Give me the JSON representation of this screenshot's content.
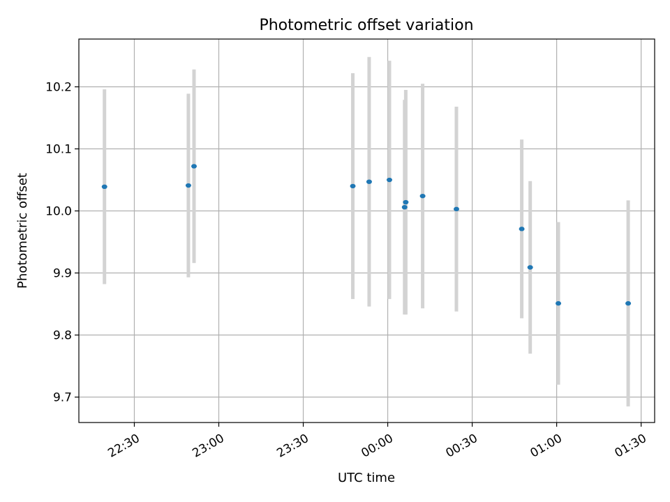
{
  "chart_data": {
    "type": "scatter",
    "title": "Photometric offset variation",
    "xlabel": "UTC time",
    "ylabel": "Photometric offset",
    "x_unit": "minutes after 22:00 UTC",
    "x_ticks": [
      {
        "value": 30,
        "label": "22:30"
      },
      {
        "value": 60,
        "label": "23:00"
      },
      {
        "value": 90,
        "label": "23:30"
      },
      {
        "value": 120,
        "label": "00:00"
      },
      {
        "value": 150,
        "label": "00:30"
      },
      {
        "value": 180,
        "label": "01:00"
      },
      {
        "value": 210,
        "label": "01:30"
      }
    ],
    "y_ticks": [
      {
        "value": 9.7,
        "label": "9.7"
      },
      {
        "value": 9.8,
        "label": "9.8"
      },
      {
        "value": 9.9,
        "label": "9.9"
      },
      {
        "value": 10.0,
        "label": "10.0"
      },
      {
        "value": 10.1,
        "label": "10.1"
      },
      {
        "value": 10.2,
        "label": "10.2"
      }
    ],
    "xlim": [
      10.3,
      214.8
    ],
    "ylim": [
      9.659,
      10.277
    ],
    "grid": true,
    "marker_color": "#1f77b4",
    "errorbar_color": "#d3d3d3",
    "points": [
      {
        "x": 19.4,
        "y": 10.039,
        "err": 0.157
      },
      {
        "x": 49.2,
        "y": 10.041,
        "err": 0.148
      },
      {
        "x": 51.2,
        "y": 10.072,
        "err": 0.156
      },
      {
        "x": 107.6,
        "y": 10.04,
        "err": 0.182
      },
      {
        "x": 113.4,
        "y": 10.047,
        "err": 0.201
      },
      {
        "x": 120.6,
        "y": 10.05,
        "err": 0.192
      },
      {
        "x": 126.0,
        "y": 10.006,
        "err": 0.173
      },
      {
        "x": 126.4,
        "y": 10.014,
        "err": 0.181
      },
      {
        "x": 132.4,
        "y": 10.024,
        "err": 0.181
      },
      {
        "x": 144.4,
        "y": 10.003,
        "err": 0.165
      },
      {
        "x": 167.6,
        "y": 9.971,
        "err": 0.144
      },
      {
        "x": 170.6,
        "y": 9.909,
        "err": 0.139
      },
      {
        "x": 180.6,
        "y": 9.851,
        "err": 0.131
      },
      {
        "x": 205.4,
        "y": 9.851,
        "err": 0.166
      }
    ]
  }
}
